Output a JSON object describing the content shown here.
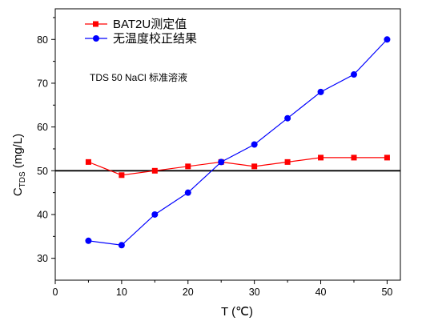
{
  "chart_data": {
    "type": "line",
    "title": "",
    "xlabel": "T (℃)",
    "ylabel_main": "C",
    "ylabel_sub": "TDS",
    "ylabel_unit": " (mg/L)",
    "xlim": [
      0,
      52
    ],
    "ylim": [
      25,
      87
    ],
    "xticks": [
      0,
      10,
      20,
      30,
      40,
      50
    ],
    "yticks": [
      30,
      40,
      50,
      60,
      70,
      80
    ],
    "x": [
      5,
      10,
      15,
      20,
      25,
      30,
      35,
      40,
      45,
      50
    ],
    "series": [
      {
        "name": "BAT2U测定值",
        "color": "#ff0000",
        "marker": "square",
        "values": [
          52,
          49,
          50,
          51,
          52,
          51,
          52,
          53,
          53,
          53
        ]
      },
      {
        "name": "无温度校正结果",
        "color": "#0000ff",
        "marker": "circle",
        "values": [
          34,
          33,
          40,
          45,
          52,
          56,
          62,
          68,
          72,
          80
        ]
      }
    ],
    "reference_line": {
      "y": 50,
      "color": "#000000"
    },
    "annotation": "TDS 50 NaCl 标准溶液",
    "legend_position": "top-left",
    "grid": false
  }
}
